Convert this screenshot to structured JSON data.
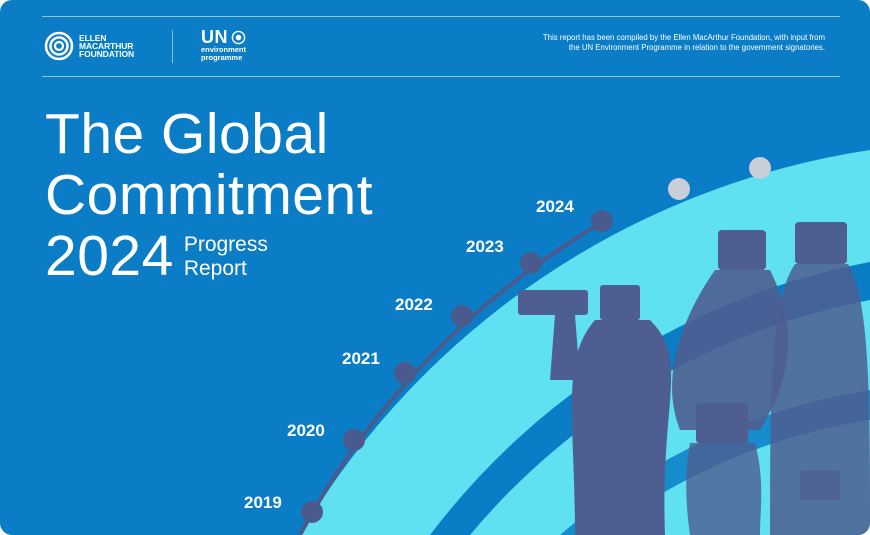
{
  "header": {
    "emf_logo": "ELLEN MACARTHUR FOUNDATION",
    "unep_logo": {
      "un": "UN",
      "line1": "environment",
      "line2": "programme"
    },
    "blurb": "This report has been compiled by the Ellen MacArthur Foundation, with input from the UN Environment Programme in relation to the government signatories."
  },
  "title": {
    "line1": "The Global",
    "line2": "Commitment",
    "year": "2024",
    "sub1": "Progress",
    "sub2": "Report"
  },
  "timeline": {
    "years": [
      "2019",
      "2020",
      "2021",
      "2022",
      "2023",
      "2024"
    ],
    "future_markers": 2
  },
  "colors": {
    "background": "#0b7dc6",
    "arc": "#5fe1f2",
    "dot": "#4b5a8c",
    "future_dot": "#c9ced8",
    "bottles": "#4e5e90"
  }
}
